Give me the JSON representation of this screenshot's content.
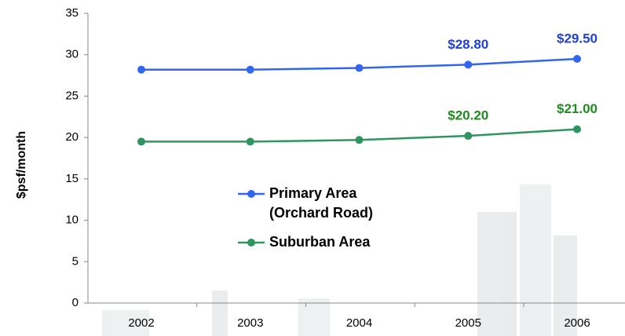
{
  "chart_data": {
    "type": "line",
    "y_label": "$psf/month",
    "categories": [
      "2002",
      "2003",
      "2004",
      "2005",
      "2006"
    ],
    "series": [
      {
        "name": "Primary Area (Orchard Road)",
        "color": "#3366ee",
        "label_color": "#1f3fd6",
        "values": [
          28.2,
          28.2,
          28.4,
          28.8,
          29.5
        ],
        "value_labels": [
          null,
          null,
          null,
          "$28.80",
          "$29.50"
        ]
      },
      {
        "name": "Suburban Area",
        "color": "#2e9460",
        "label_color": "#1f8a1f",
        "values": [
          19.5,
          19.5,
          19.7,
          20.2,
          21.0
        ],
        "value_labels": [
          null,
          null,
          null,
          "$20.20",
          "$21.00"
        ]
      }
    ],
    "ylim": [
      0,
      35
    ],
    "yticks": [
      0,
      5,
      10,
      15,
      20,
      25,
      30,
      35
    ],
    "grid": false
  }
}
